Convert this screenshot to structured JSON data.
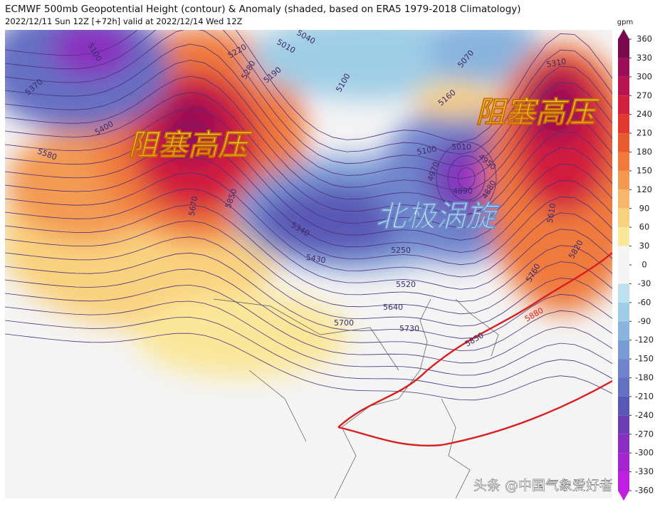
{
  "header": {
    "title": "ECMWF 500mb Geopotential Height (contour) & Anomaly (shaded, based on ERA5 1979-2018 Climatology)",
    "subtitle": "2022/12/11 Sun 12Z [+72h] valid at 2022/12/14 Wed 12Z"
  },
  "colorbar": {
    "unit": "gpm",
    "ticks": [
      360,
      330,
      300,
      270,
      240,
      210,
      180,
      150,
      120,
      90,
      60,
      30,
      0,
      -30,
      -60,
      -90,
      -120,
      -150,
      -180,
      -210,
      -240,
      -270,
      -300,
      -330,
      -360
    ],
    "colors": [
      "#7a0a4f",
      "#9a0f55",
      "#b8144f",
      "#d21f3d",
      "#e2382d",
      "#ea5a2f",
      "#ef7a3c",
      "#f39a52",
      "#f6b76a",
      "#f9d27f",
      "#fbe79a",
      "#f5f5f5",
      "#f5f5f5",
      "#bfe0ee",
      "#9fcde6",
      "#88b4de",
      "#7a9bd6",
      "#6f84cc",
      "#6570c3",
      "#5a58b6",
      "#6a3fb3",
      "#8a2dc0",
      "#a424d0",
      "#c01ee0"
    ]
  },
  "contour_labels": [
    "5100",
    "5370",
    "5400",
    "5580",
    "5670",
    "5850",
    "5220",
    "5280",
    "5190",
    "5040",
    "5010",
    "5070",
    "5100",
    "5160",
    "5310",
    "5100",
    "5010",
    "4970",
    "4950",
    "4890",
    "4880",
    "5610",
    "5820",
    "5760",
    "5340",
    "5430",
    "5250",
    "5520",
    "5640",
    "5700",
    "5730",
    "5850",
    "5880"
  ],
  "annotations": [
    "阻塞高压",
    "阻塞高压",
    "北极涡旋"
  ],
  "watermark": "头条 @中国气象爱好者"
}
